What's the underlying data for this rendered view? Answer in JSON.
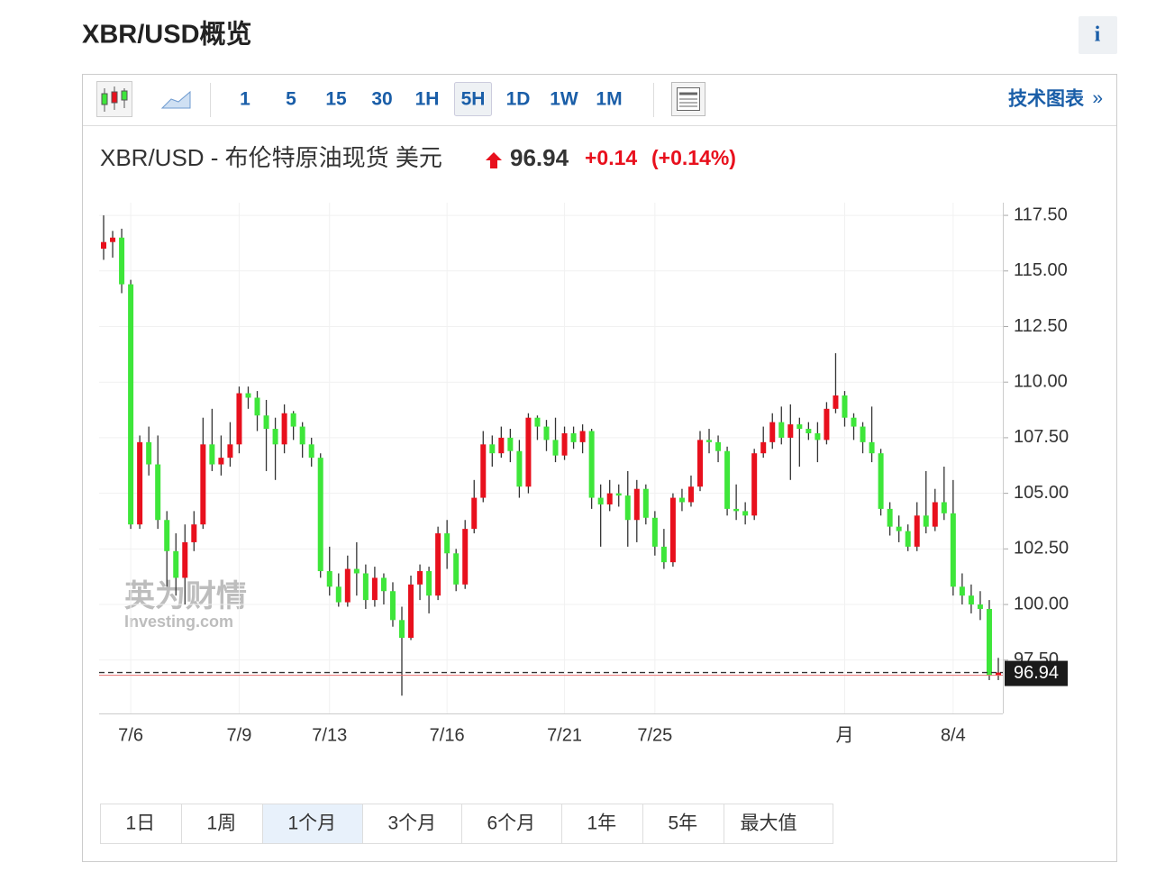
{
  "header": {
    "title": "XBR/USD概览",
    "info": "i"
  },
  "toolbar": {
    "intervals": [
      "1",
      "5",
      "15",
      "30",
      "1H",
      "5H",
      "1D",
      "1W",
      "1M"
    ],
    "active": 5,
    "link": "技术图表",
    "link_arrow": "»"
  },
  "quote": {
    "name": "XBR/USD - 布伦特原油现货 美元",
    "price": "96.94",
    "change": "+0.14",
    "change_pct": "(+0.14%)"
  },
  "watermark": {
    "cn": "英为财情",
    "en": "Investing.com"
  },
  "chart_data": {
    "type": "candlestick",
    "up_color": "#e8101d",
    "down_color": "#3ee63a",
    "categories": [
      null,
      null,
      null,
      "7/6",
      null,
      null,
      null,
      null,
      null,
      null,
      null,
      null,
      null,
      null,
      null,
      "7/9",
      null,
      null,
      null,
      null,
      null,
      null,
      null,
      null,
      null,
      "7/13",
      null,
      null,
      null,
      null,
      null,
      null,
      null,
      null,
      null,
      null,
      null,
      null,
      "7/16",
      null,
      null,
      null,
      null,
      null,
      null,
      null,
      null,
      null,
      null,
      null,
      null,
      "7/21",
      null,
      null,
      null,
      null,
      null,
      null,
      null,
      null,
      null,
      "7/25",
      null,
      null,
      null,
      null,
      null,
      null,
      null,
      null,
      null,
      null,
      null,
      null,
      null,
      null,
      null,
      null,
      null,
      null,
      null,
      null,
      "月",
      null,
      null,
      null,
      null,
      null,
      null,
      null,
      null,
      null,
      null,
      null,
      "8/4",
      null,
      null,
      null,
      null,
      null
    ],
    "open": [
      116.0,
      116.3,
      116.5,
      114.4,
      103.6,
      107.3,
      106.3,
      103.8,
      102.4,
      101.2,
      102.8,
      103.6,
      107.2,
      106.3,
      106.6,
      107.2,
      109.5,
      109.3,
      108.5,
      107.9,
      107.2,
      108.6,
      108.0,
      107.2,
      106.6,
      101.5,
      100.8,
      100.1,
      101.6,
      101.4,
      100.2,
      101.2,
      100.6,
      99.3,
      98.5,
      100.9,
      101.5,
      100.4,
      103.2,
      102.3,
      100.9,
      103.4,
      104.8,
      107.2,
      106.8,
      107.5,
      106.9,
      105.3,
      108.4,
      108.0,
      107.4,
      106.7,
      107.7,
      107.3,
      107.8,
      104.8,
      104.5,
      105.0,
      104.9,
      103.8,
      105.2,
      103.9,
      102.6,
      101.9,
      104.8,
      104.6,
      105.3,
      107.4,
      107.3,
      106.9,
      104.3,
      104.2,
      104.0,
      106.8,
      107.3,
      108.2,
      107.5,
      108.1,
      107.9,
      107.7,
      107.4,
      108.8,
      109.4,
      108.4,
      108.0,
      107.3,
      106.8,
      104.3,
      103.5,
      103.3,
      102.6,
      104.0,
      103.5,
      104.6,
      104.1,
      100.8,
      100.4,
      100.0,
      99.8,
      96.8
    ],
    "high": [
      117.5,
      116.8,
      116.9,
      114.6,
      107.6,
      108.0,
      107.6,
      104.2,
      103.2,
      103.6,
      104.2,
      108.4,
      108.8,
      107.6,
      108.2,
      109.8,
      109.8,
      109.6,
      109.2,
      108.4,
      109.0,
      108.7,
      108.2,
      107.5,
      106.8,
      102.6,
      101.4,
      102.2,
      102.8,
      101.8,
      101.7,
      101.4,
      101.0,
      99.9,
      101.3,
      101.8,
      101.7,
      103.5,
      103.8,
      102.5,
      103.8,
      105.6,
      107.8,
      107.6,
      108.0,
      107.9,
      107.4,
      108.6,
      108.5,
      108.3,
      108.4,
      108.0,
      108.0,
      108.1,
      107.9,
      105.4,
      105.6,
      105.4,
      106.0,
      105.6,
      105.4,
      104.2,
      103.4,
      105.0,
      105.2,
      105.8,
      107.8,
      107.9,
      107.6,
      107.1,
      105.4,
      104.6,
      107.0,
      108.0,
      108.6,
      108.9,
      109.0,
      108.4,
      108.2,
      108.2,
      109.1,
      111.3,
      109.6,
      108.6,
      108.2,
      108.9,
      107.0,
      104.6,
      104.0,
      103.6,
      104.6,
      106.0,
      105.2,
      106.2,
      105.6,
      101.4,
      100.9,
      100.6,
      100.2,
      97.6
    ],
    "low": [
      115.5,
      115.6,
      114.0,
      103.4,
      103.4,
      105.8,
      103.4,
      100.8,
      100.4,
      100.0,
      102.4,
      103.4,
      106.0,
      105.8,
      106.2,
      106.8,
      108.8,
      107.8,
      106.0,
      105.6,
      106.8,
      107.4,
      106.6,
      106.2,
      101.2,
      100.4,
      99.9,
      99.9,
      100.4,
      99.8,
      99.9,
      100.0,
      99.0,
      95.9,
      98.4,
      100.2,
      99.6,
      100.2,
      101.6,
      100.6,
      100.7,
      103.2,
      104.6,
      106.2,
      106.6,
      106.4,
      104.8,
      105.0,
      107.4,
      106.9,
      106.4,
      106.5,
      107.0,
      106.8,
      104.3,
      102.6,
      104.2,
      104.4,
      102.6,
      102.8,
      103.6,
      102.2,
      101.6,
      101.7,
      104.2,
      104.4,
      105.1,
      106.8,
      106.4,
      104.0,
      103.8,
      103.6,
      103.8,
      106.6,
      107.0,
      107.2,
      105.6,
      106.2,
      107.4,
      106.4,
      107.2,
      108.6,
      108.0,
      107.4,
      106.8,
      106.4,
      104.0,
      103.1,
      102.8,
      102.4,
      102.4,
      103.2,
      103.3,
      103.8,
      100.4,
      100.0,
      99.6,
      99.3,
      96.6,
      96.6
    ],
    "close": [
      116.3,
      116.5,
      114.4,
      103.6,
      107.3,
      106.3,
      103.8,
      102.4,
      101.2,
      102.8,
      103.6,
      107.2,
      106.3,
      106.6,
      107.2,
      109.5,
      109.3,
      108.5,
      107.9,
      107.2,
      108.6,
      108.0,
      107.2,
      106.6,
      101.5,
      100.8,
      100.1,
      101.6,
      101.4,
      100.2,
      101.2,
      100.6,
      99.3,
      98.5,
      100.9,
      101.5,
      100.4,
      103.2,
      102.3,
      100.9,
      103.4,
      104.8,
      107.2,
      106.8,
      107.5,
      106.9,
      105.3,
      108.4,
      108.0,
      107.4,
      106.7,
      107.7,
      107.3,
      107.8,
      104.8,
      104.5,
      105.0,
      104.9,
      103.8,
      105.2,
      103.9,
      102.6,
      101.9,
      104.8,
      104.6,
      105.3,
      107.4,
      107.3,
      106.9,
      104.3,
      104.2,
      104.0,
      106.8,
      107.3,
      108.2,
      107.5,
      108.1,
      107.9,
      107.7,
      107.4,
      108.8,
      109.4,
      108.4,
      108.0,
      107.3,
      106.8,
      104.3,
      103.5,
      103.3,
      102.6,
      104.0,
      103.5,
      104.6,
      104.1,
      100.8,
      100.4,
      100.0,
      99.8,
      96.8,
      96.94
    ],
    "ylim": [
      95.1,
      118.07
    ],
    "yticks": [
      {
        "value": 97.5,
        "label": "97.50"
      },
      {
        "value": 100,
        "label": "100.00"
      },
      {
        "value": 102.5,
        "label": "102.50"
      },
      {
        "value": 105,
        "label": "105.00"
      },
      {
        "value": 107.5,
        "label": "107.50"
      },
      {
        "value": 110,
        "label": "110.00"
      },
      {
        "value": 112.5,
        "label": "112.50"
      },
      {
        "value": 115,
        "label": "115.00"
      },
      {
        "value": 117.5,
        "label": "117.50"
      }
    ],
    "grid": true
  },
  "ranges": {
    "buttons": [
      "1日",
      "1周",
      "1个月",
      "3个月",
      "6个月",
      "1年",
      "5年",
      "最大值"
    ],
    "active": 2
  }
}
